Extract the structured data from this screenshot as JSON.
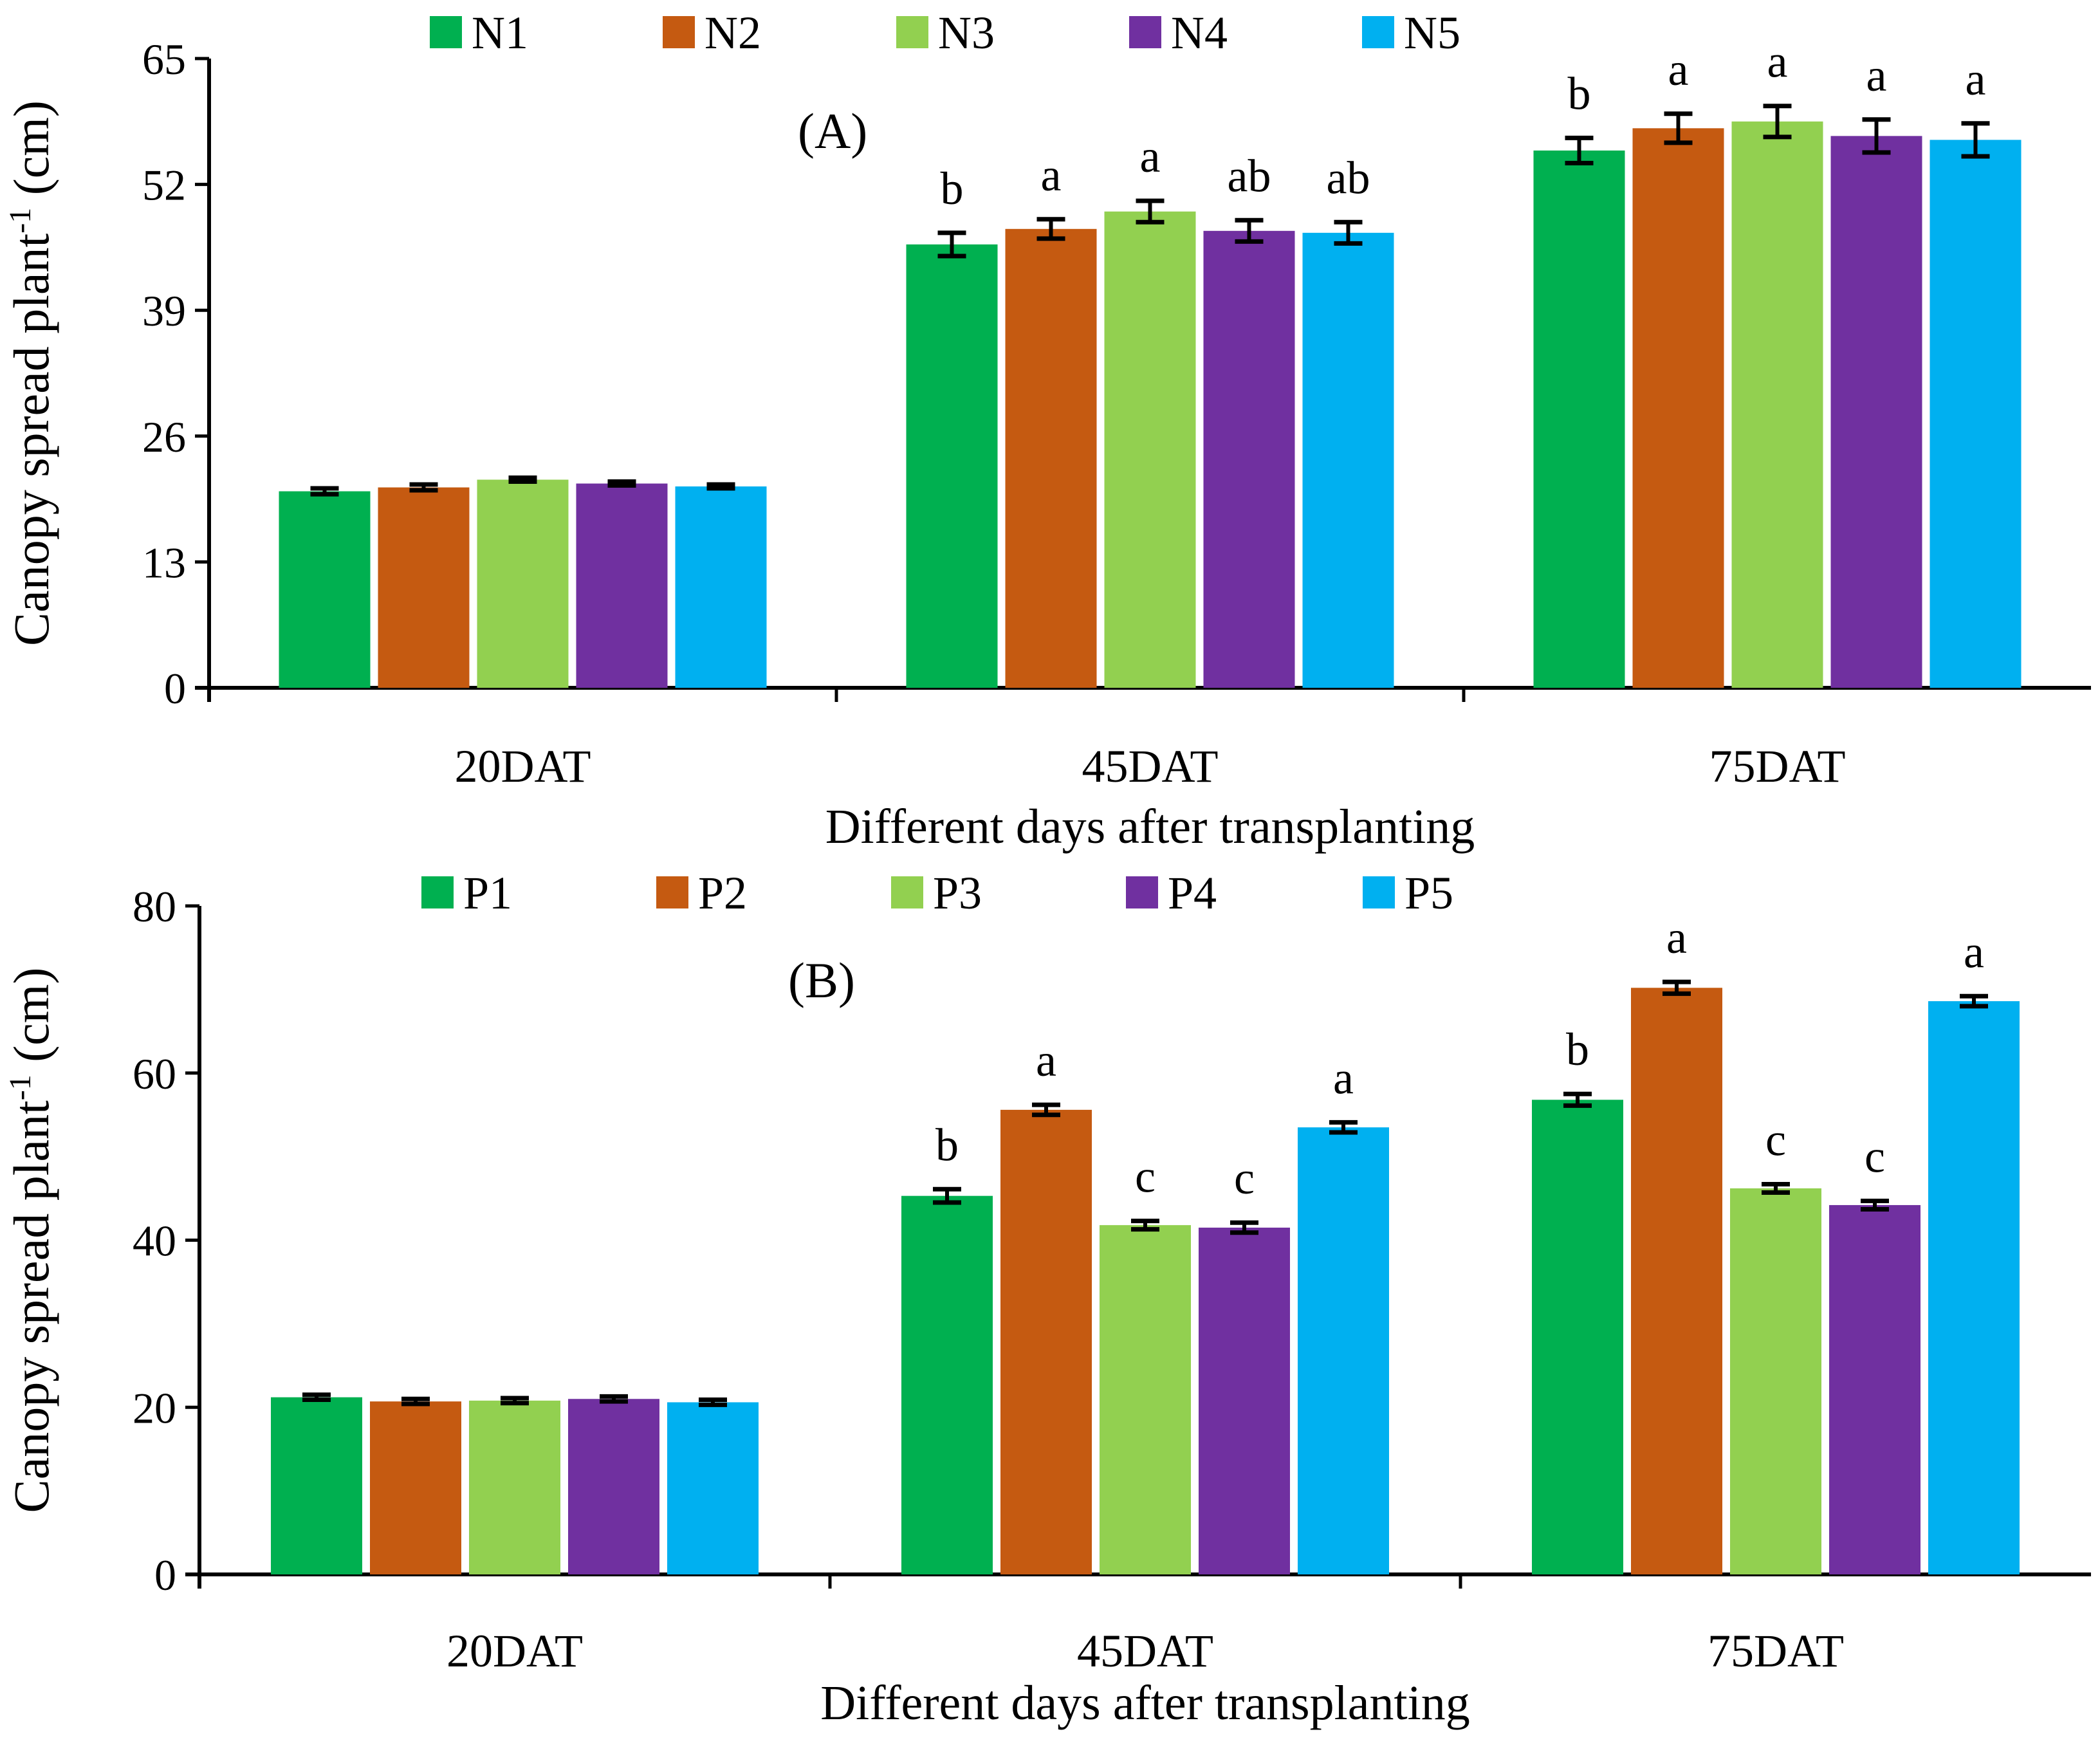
{
  "chart_data": [
    {
      "type": "bar",
      "panel_label": "(A)",
      "title": "",
      "xlabel": "Different days after transplanting",
      "ylabel": "Canopy spread plant-1 (cm)",
      "ylabel_parts": {
        "pre": "Canopy spread plant",
        "sup": "-1",
        "post": " (cm)"
      },
      "ylim": [
        0,
        65
      ],
      "yticks": [
        "0",
        "13",
        "26",
        "39",
        "52",
        "65"
      ],
      "ytick_values": [
        0,
        13,
        26,
        39,
        52,
        65
      ],
      "categories": [
        "20DAT",
        "45DAT",
        "75DAT"
      ],
      "legend_position": "top",
      "grid": false,
      "series": [
        {
          "name": "N1",
          "color": "#00B050",
          "values": [
            20.3,
            45.8,
            55.5
          ],
          "errors": [
            0.3,
            1.2,
            1.3
          ],
          "letters": [
            "",
            "b",
            "b"
          ]
        },
        {
          "name": "N2",
          "color": "#C55A11",
          "values": [
            20.7,
            47.4,
            57.8
          ],
          "errors": [
            0.3,
            1.0,
            1.5
          ],
          "letters": [
            "",
            "a",
            "a"
          ]
        },
        {
          "name": "N3",
          "color": "#92D050",
          "values": [
            21.5,
            49.2,
            58.5
          ],
          "errors": [
            0.2,
            1.1,
            1.6
          ],
          "letters": [
            "",
            "a",
            "a"
          ]
        },
        {
          "name": "N4",
          "color": "#7030A0",
          "values": [
            21.1,
            47.2,
            57.0
          ],
          "errors": [
            0.2,
            1.1,
            1.7
          ],
          "letters": [
            "",
            "ab",
            "a"
          ]
        },
        {
          "name": "N5",
          "color": "#00B0F0",
          "values": [
            20.8,
            47.0,
            56.6
          ],
          "errors": [
            0.2,
            1.1,
            1.7
          ],
          "letters": [
            "",
            "ab",
            "a"
          ]
        }
      ]
    },
    {
      "type": "bar",
      "panel_label": "(B)",
      "title": "",
      "xlabel": "Different days after transplanting",
      "ylabel": "Canopy spread plant-1 (cm)",
      "ylabel_parts": {
        "pre": "Canopy spread plant",
        "sup": "-1",
        "post": " (cm)"
      },
      "ylim": [
        0,
        80
      ],
      "yticks": [
        "0",
        "20",
        "40",
        "60",
        "80"
      ],
      "ytick_values": [
        0,
        20,
        40,
        60,
        80
      ],
      "categories": [
        "20DAT",
        "45DAT",
        "75DAT"
      ],
      "legend_position": "top",
      "grid": false,
      "series": [
        {
          "name": "P1",
          "color": "#00B050",
          "values": [
            21.2,
            45.3,
            56.8
          ],
          "errors": [
            0.3,
            0.8,
            0.7
          ],
          "letters": [
            "",
            "b",
            "b"
          ]
        },
        {
          "name": "P2",
          "color": "#C55A11",
          "values": [
            20.7,
            55.6,
            70.2
          ],
          "errors": [
            0.3,
            0.6,
            0.7
          ],
          "letters": [
            "",
            "a",
            "a"
          ]
        },
        {
          "name": "P3",
          "color": "#92D050",
          "values": [
            20.8,
            41.8,
            46.2
          ],
          "errors": [
            0.3,
            0.5,
            0.5
          ],
          "letters": [
            "",
            "c",
            "c"
          ]
        },
        {
          "name": "P4",
          "color": "#7030A0",
          "values": [
            21.0,
            41.5,
            44.2
          ],
          "errors": [
            0.3,
            0.6,
            0.5
          ],
          "letters": [
            "",
            "c",
            "c"
          ]
        },
        {
          "name": "P5",
          "color": "#00B0F0",
          "values": [
            20.6,
            53.5,
            68.6
          ],
          "errors": [
            0.3,
            0.6,
            0.6
          ],
          "letters": [
            "",
            "a",
            "a"
          ]
        }
      ]
    }
  ]
}
